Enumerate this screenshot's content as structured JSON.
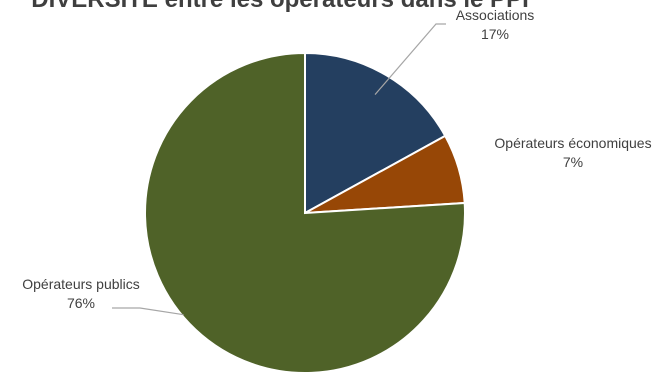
{
  "chart_data": {
    "type": "pie",
    "title": "DIVERSITE entre les opérateurs dans le PPI",
    "slices": [
      {
        "label": "Associations",
        "value": 17,
        "value_label": "17%",
        "color": "#243f60"
      },
      {
        "label": "Opérateurs économiques",
        "value": 7,
        "value_label": "7%",
        "color": "#974706"
      },
      {
        "label": "Opérateurs publics",
        "value": 76,
        "value_label": "76%",
        "color": "#4f6228"
      }
    ]
  }
}
